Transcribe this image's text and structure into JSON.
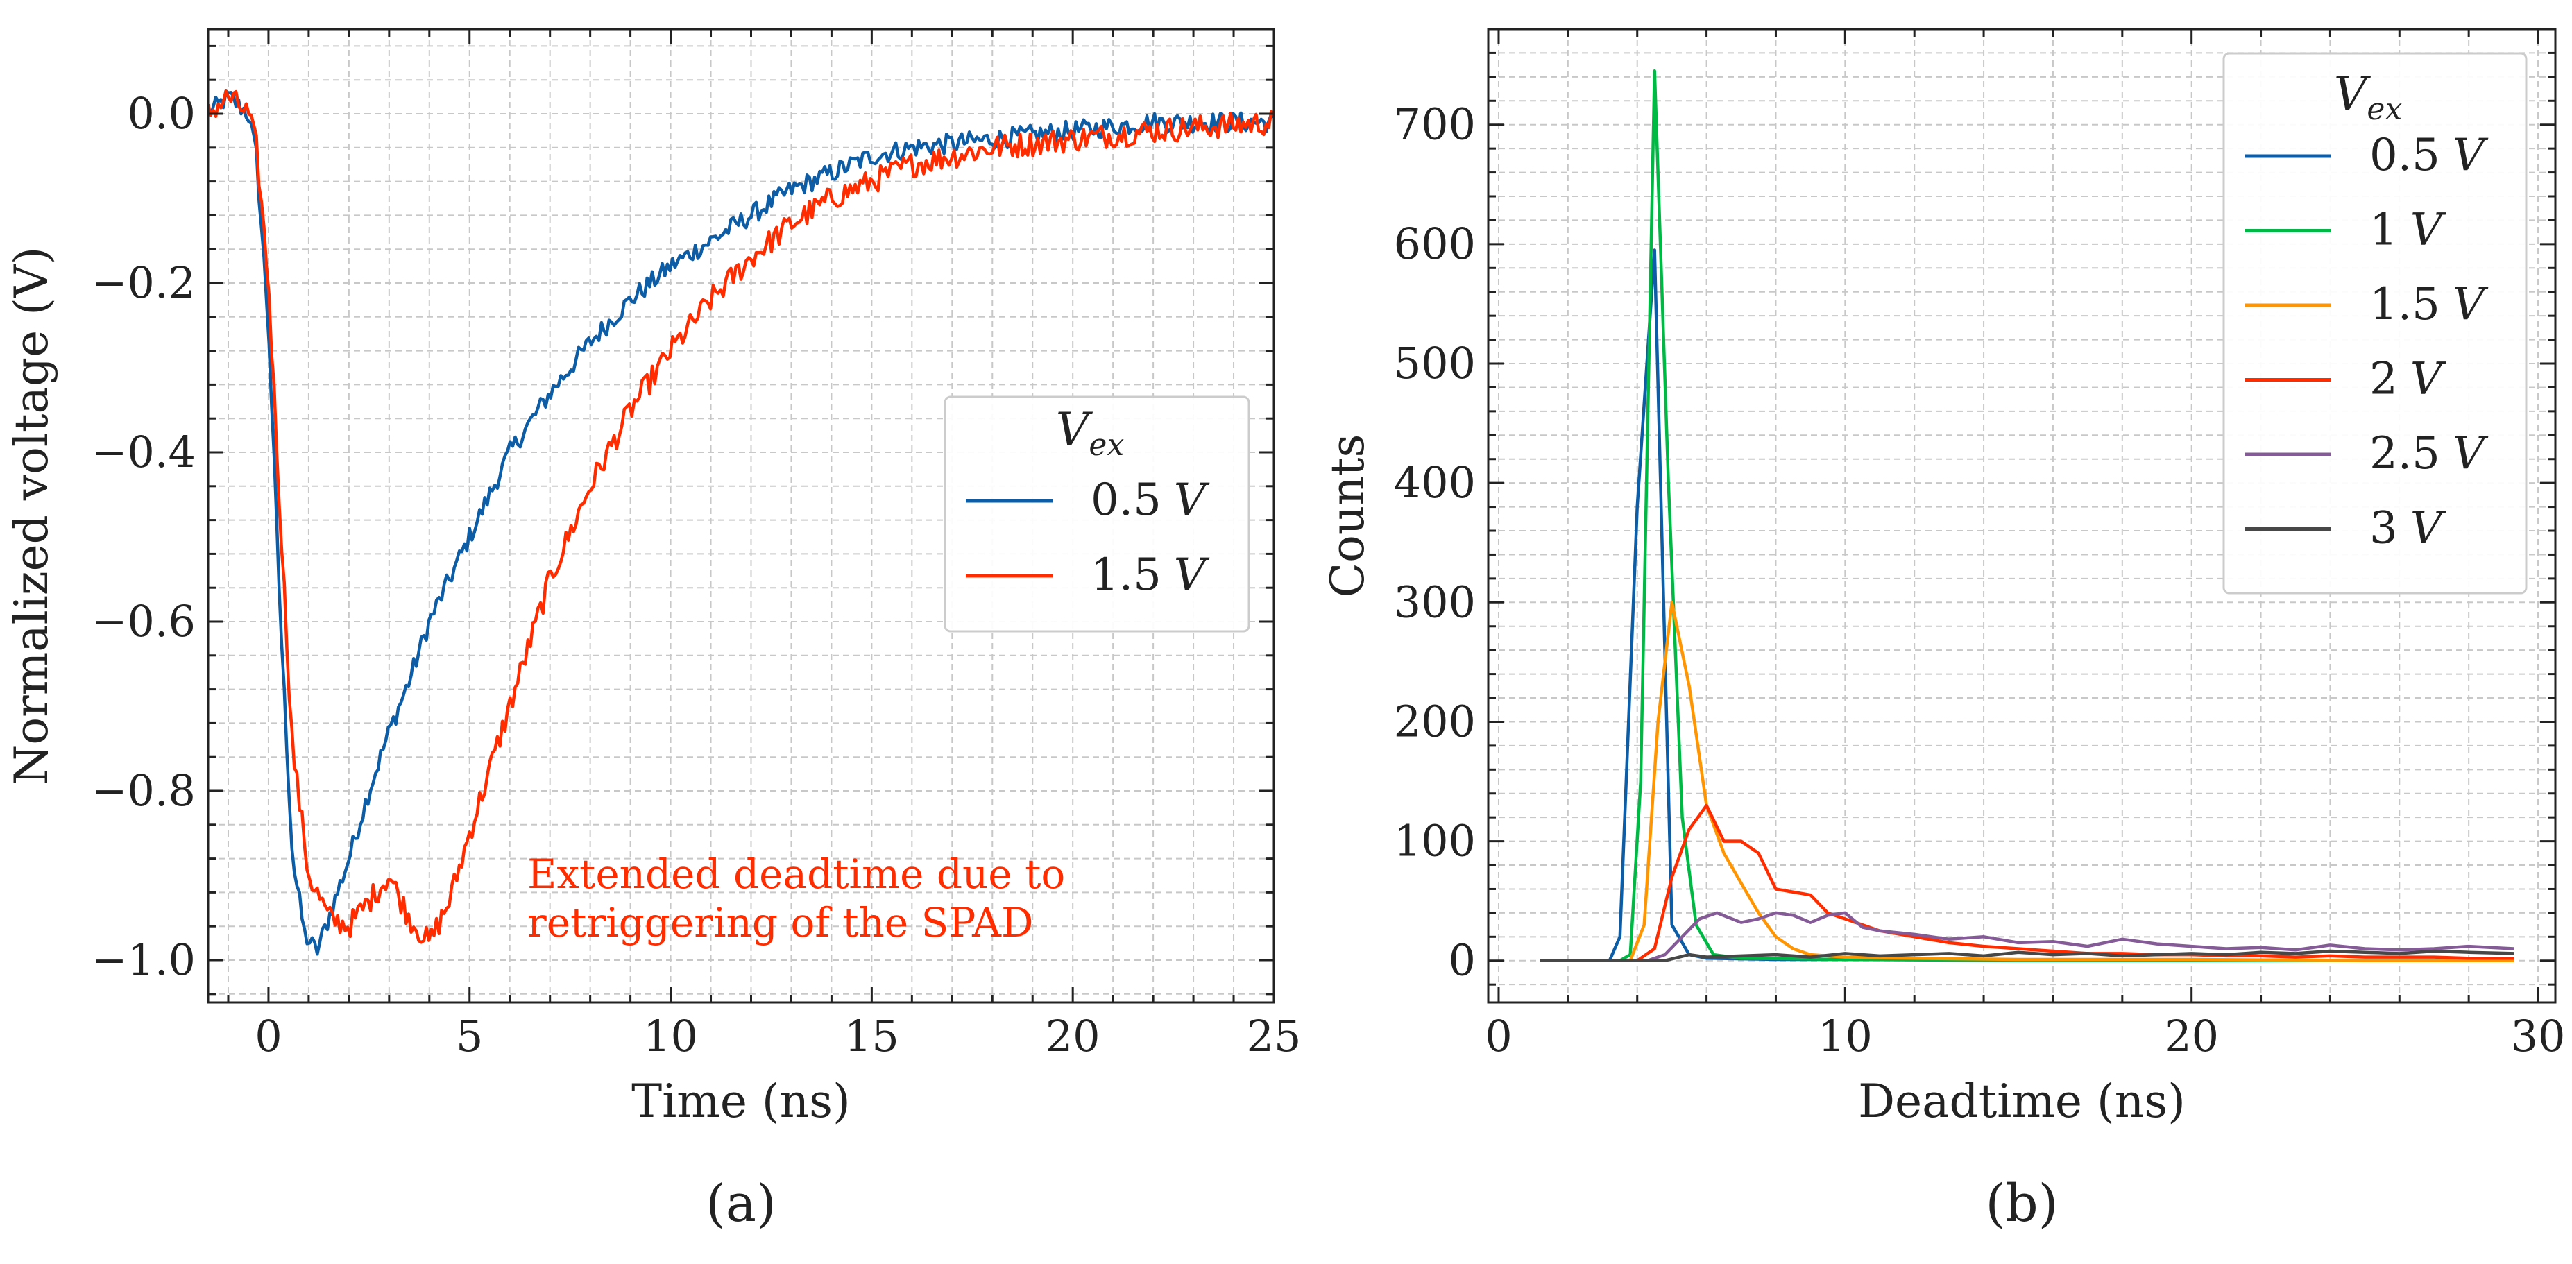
{
  "colors": {
    "blue": "#0C5DA5",
    "green": "#00B945",
    "orange": "#FF9500",
    "red": "#FF2C00",
    "purple": "#845B97",
    "dark": "#474747",
    "grid": "#c8c8c8",
    "axis": "#222222"
  },
  "chart_data": [
    {
      "id": "a",
      "type": "line",
      "panel_label": "(a)",
      "title": "",
      "xlabel": "Time (ns)",
      "ylabel": "Normalized voltage (V)",
      "xlim": [
        -1.5,
        25
      ],
      "ylim": [
        -1.05,
        0.1
      ],
      "xticks": [
        0,
        5,
        10,
        15,
        20,
        25
      ],
      "xticklabels": [
        "0",
        "5",
        "10",
        "15",
        "20",
        "25"
      ],
      "yticks": [
        0.0,
        -0.2,
        -0.4,
        -0.6,
        -0.8,
        -1.0
      ],
      "yticklabels": [
        "0.0",
        "−0.2",
        "−0.4",
        "−0.6",
        "−0.8",
        "−1.0"
      ],
      "grid": true,
      "legend": {
        "title": "V_ex",
        "title_main": "V",
        "title_sub": "ex",
        "position": "center-right"
      },
      "annotation": {
        "lines": [
          "Extended deadtime due to",
          "retriggering of the SPAD"
        ],
        "color_key": "red"
      },
      "series": [
        {
          "name": "0.5 V",
          "value": "0.5",
          "unit": "V",
          "color_key": "blue",
          "x": [
            -1.5,
            -1.0,
            -0.5,
            -0.3,
            0.0,
            0.3,
            0.6,
            0.9,
            1.2,
            1.5,
            2.0,
            2.5,
            3.0,
            3.5,
            4.0,
            5.0,
            6.0,
            7.0,
            8.0,
            9.0,
            10.0,
            11.0,
            12.0,
            13.0,
            14.0,
            15.0,
            16.0,
            18.0,
            20.0,
            22.0,
            25.0
          ],
          "y": [
            0.0,
            0.02,
            0.0,
            -0.05,
            -0.25,
            -0.6,
            -0.88,
            -0.97,
            -0.99,
            -0.95,
            -0.88,
            -0.8,
            -0.73,
            -0.67,
            -0.6,
            -0.5,
            -0.4,
            -0.33,
            -0.27,
            -0.22,
            -0.18,
            -0.15,
            -0.12,
            -0.09,
            -0.07,
            -0.05,
            -0.04,
            -0.03,
            -0.02,
            -0.01,
            -0.01
          ],
          "noise": 0.012
        },
        {
          "name": "1.5 V",
          "value": "1.5",
          "unit": "V",
          "color_key": "red",
          "x": [
            -1.5,
            -1.0,
            -0.5,
            -0.3,
            0.0,
            0.3,
            0.6,
            1.0,
            1.5,
            2.0,
            2.5,
            3.0,
            3.5,
            4.0,
            4.5,
            5.0,
            6.0,
            7.0,
            8.0,
            9.0,
            10.0,
            11.0,
            12.0,
            13.0,
            14.0,
            15.0,
            16.0,
            18.0,
            20.0,
            22.0,
            25.0
          ],
          "y": [
            0.0,
            0.02,
            0.0,
            -0.04,
            -0.2,
            -0.48,
            -0.75,
            -0.9,
            -0.95,
            -0.96,
            -0.93,
            -0.9,
            -0.95,
            -0.98,
            -0.93,
            -0.85,
            -0.7,
            -0.55,
            -0.44,
            -0.35,
            -0.28,
            -0.22,
            -0.17,
            -0.13,
            -0.1,
            -0.08,
            -0.06,
            -0.04,
            -0.03,
            -0.02,
            -0.01
          ],
          "noise": 0.015
        }
      ]
    },
    {
      "id": "b",
      "type": "line",
      "panel_label": "(b)",
      "title": "",
      "xlabel": "Deadtime (ns)",
      "ylabel": "Counts",
      "xlim": [
        -0.3,
        30.5
      ],
      "ylim": [
        -35,
        780
      ],
      "xticks": [
        0,
        10,
        20,
        30
      ],
      "xticklabels": [
        "0",
        "10",
        "20",
        "30"
      ],
      "yticks": [
        0,
        100,
        200,
        300,
        400,
        500,
        600,
        700
      ],
      "yticklabels": [
        "0",
        "100",
        "200",
        "300",
        "400",
        "500",
        "600",
        "700"
      ],
      "grid": true,
      "legend": {
        "title": "V_ex",
        "title_main": "V",
        "title_sub": "ex",
        "position": "top-right"
      },
      "series": [
        {
          "name": "0.5 V",
          "value": "0.5",
          "unit": "V",
          "color_key": "blue",
          "x": [
            1.2,
            3.2,
            3.5,
            4.0,
            4.5,
            5.0,
            5.5,
            6.0,
            8.0,
            12.0,
            16.0,
            20.0,
            24.0,
            29.3
          ],
          "y": [
            0,
            0,
            20,
            380,
            595,
            30,
            5,
            2,
            1,
            1,
            0,
            0,
            0,
            0
          ]
        },
        {
          "name": "1 V",
          "value": "1",
          "unit": "V",
          "color_key": "green",
          "x": [
            1.2,
            3.5,
            3.8,
            4.1,
            4.5,
            4.9,
            5.3,
            5.7,
            6.2,
            7.0,
            10.0,
            15.0,
            20.0,
            29.3
          ],
          "y": [
            0,
            0,
            5,
            150,
            745,
            400,
            120,
            30,
            5,
            2,
            1,
            0,
            0,
            0
          ]
        },
        {
          "name": "1.5 V",
          "value": "1.5",
          "unit": "V",
          "color_key": "orange",
          "x": [
            1.2,
            3.8,
            4.2,
            4.6,
            5.0,
            5.5,
            6.0,
            6.5,
            7.0,
            7.5,
            8.0,
            8.5,
            9.0,
            10.0,
            12.0,
            15.0,
            20.0,
            25.0,
            29.3
          ],
          "y": [
            0,
            0,
            30,
            200,
            300,
            230,
            130,
            90,
            65,
            40,
            20,
            10,
            5,
            3,
            2,
            1,
            1,
            0,
            0
          ]
        },
        {
          "name": "2 V",
          "value": "2",
          "unit": "V",
          "color_key": "red",
          "x": [
            1.2,
            4.0,
            4.5,
            5.0,
            5.5,
            6.0,
            6.5,
            7.0,
            7.5,
            8.0,
            9.0,
            9.5,
            10.0,
            11.0,
            12.0,
            13.0,
            14.0,
            15.0,
            16.0,
            17.0,
            18.0,
            19.0,
            20.0,
            21.0,
            22.0,
            23.0,
            24.0,
            25.0,
            26.0,
            27.0,
            28.0,
            29.3
          ],
          "y": [
            0,
            0,
            10,
            70,
            110,
            130,
            100,
            100,
            90,
            60,
            55,
            40,
            35,
            25,
            20,
            15,
            12,
            10,
            8,
            6,
            6,
            5,
            5,
            4,
            4,
            3,
            4,
            3,
            3,
            3,
            2,
            2
          ]
        },
        {
          "name": "2.5 V",
          "value": "2.5",
          "unit": "V",
          "color_key": "purple",
          "x": [
            1.2,
            4.3,
            4.8,
            5.3,
            5.8,
            6.3,
            7.0,
            7.5,
            8.0,
            8.5,
            9.0,
            9.5,
            10.0,
            10.5,
            11.0,
            12.0,
            13.0,
            14.0,
            15.0,
            16.0,
            17.0,
            18.0,
            19.0,
            20.0,
            21.0,
            22.0,
            23.0,
            24.0,
            25.0,
            26.0,
            27.0,
            28.0,
            29.3
          ],
          "y": [
            0,
            0,
            5,
            20,
            35,
            40,
            32,
            35,
            40,
            38,
            32,
            38,
            40,
            28,
            25,
            22,
            18,
            20,
            15,
            16,
            12,
            18,
            14,
            12,
            10,
            11,
            9,
            13,
            10,
            9,
            10,
            12,
            10
          ]
        },
        {
          "name": "3 V",
          "value": "3",
          "unit": "V",
          "color_key": "dark",
          "x": [
            1.2,
            4.8,
            5.5,
            6.0,
            7.0,
            8.0,
            9.0,
            10.0,
            11.0,
            12.0,
            13.0,
            14.0,
            15.0,
            16.0,
            17.0,
            18.0,
            19.0,
            20.0,
            21.0,
            22.0,
            23.0,
            24.0,
            25.0,
            26.0,
            27.0,
            28.0,
            29.3
          ],
          "y": [
            0,
            0,
            5,
            3,
            4,
            5,
            3,
            6,
            4,
            5,
            6,
            4,
            7,
            5,
            6,
            4,
            5,
            6,
            5,
            7,
            6,
            8,
            7,
            6,
            8,
            7,
            6
          ]
        }
      ]
    }
  ]
}
